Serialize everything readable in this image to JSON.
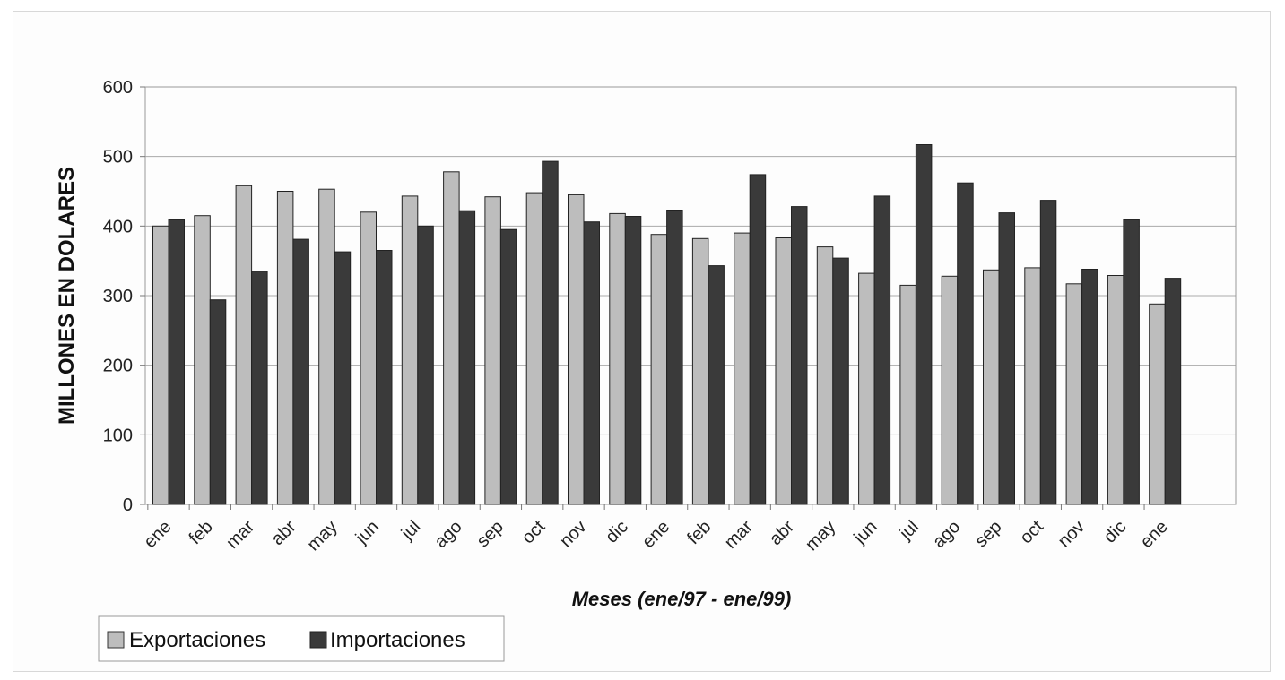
{
  "chart_data": {
    "type": "bar",
    "title": "",
    "xlabel": "Meses (ene/97 - ene/99)",
    "ylabel": "MILLONES EN DOLARES",
    "ylim": [
      0,
      600
    ],
    "yticks": [
      0,
      100,
      200,
      300,
      400,
      500,
      600
    ],
    "grid": true,
    "legend_position": "bottom-left",
    "categories": [
      "ene",
      "feb",
      "mar",
      "abr",
      "may",
      "jun",
      "jul",
      "ago",
      "sep",
      "oct",
      "nov",
      "dic",
      "ene",
      "feb",
      "mar",
      "abr",
      "may",
      "jun",
      "jul",
      "ago",
      "sep",
      "oct",
      "nov",
      "dic",
      "ene"
    ],
    "series": [
      {
        "name": "Exportaciones",
        "color": "#bdbdbd",
        "values": [
          400,
          415,
          458,
          450,
          453,
          420,
          443,
          478,
          442,
          448,
          445,
          418,
          388,
          382,
          390,
          383,
          370,
          332,
          315,
          328,
          337,
          340,
          317,
          329,
          288
        ]
      },
      {
        "name": "Importaciones",
        "color": "#3a3a3a",
        "values": [
          409,
          294,
          335,
          381,
          363,
          365,
          400,
          422,
          395,
          493,
          406,
          414,
          423,
          343,
          474,
          428,
          354,
          443,
          517,
          462,
          419,
          437,
          338,
          409,
          325
        ]
      }
    ]
  }
}
